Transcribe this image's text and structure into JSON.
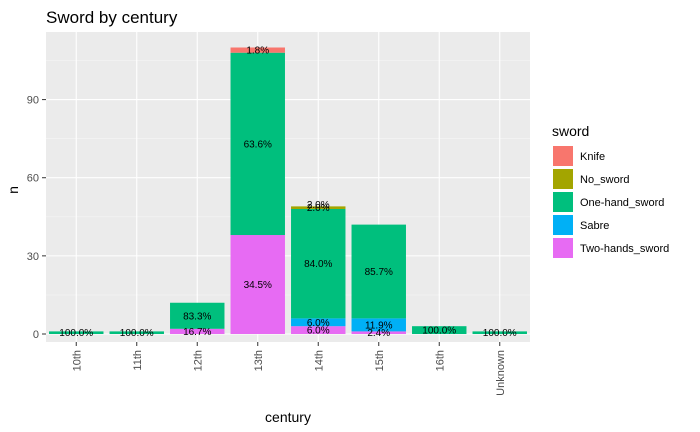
{
  "chart_data": {
    "type": "bar",
    "stacked": true,
    "title": "Sword by century",
    "xlabel": "century",
    "ylabel": "n",
    "categories": [
      "10th",
      "11th",
      "12th",
      "13th",
      "14th",
      "15th",
      "16th",
      "Unknown"
    ],
    "ylim": [
      0,
      113
    ],
    "yticks": [
      0,
      30,
      60,
      90
    ],
    "legend": {
      "title": "sword",
      "position": "right"
    },
    "series": [
      {
        "name": "Knife",
        "color": "#F8766D",
        "values": [
          0,
          0,
          0,
          2,
          0,
          0,
          0,
          0
        ],
        "labels": [
          "",
          "",
          "",
          "1.8%",
          "",
          "",
          "",
          ""
        ]
      },
      {
        "name": "No_sword",
        "color": "#A3A500",
        "values": [
          0,
          0,
          0,
          0,
          1,
          0,
          0,
          0
        ],
        "labels": [
          "",
          "",
          "",
          "",
          "2.0%",
          "",
          "",
          ""
        ]
      },
      {
        "name": "One-hand_sword",
        "color": "#00BF7D",
        "values": [
          1,
          1,
          10,
          70,
          42,
          36,
          3,
          1
        ],
        "labels": [
          "100.0%",
          "100.0%",
          "83.3%",
          "63.6%",
          "84.0%",
          "85.7%",
          "100.0%",
          "100.0%"
        ]
      },
      {
        "name": "Sabre",
        "color": "#00B0F6",
        "values": [
          0,
          0,
          0,
          0,
          3,
          5,
          0,
          0
        ],
        "labels": [
          "",
          "",
          "",
          "",
          "6.0%",
          "11.9%",
          "",
          ""
        ]
      },
      {
        "name": "Two-hands_sword",
        "color": "#E76BF3",
        "values": [
          0,
          0,
          2,
          38,
          3,
          1,
          0,
          0
        ],
        "labels": [
          "",
          "",
          "16.7%",
          "34.5%",
          "6.0%",
          "2.4%",
          "",
          ""
        ]
      }
    ],
    "extra_labels": [
      {
        "category": "14th",
        "text": "2.0%"
      }
    ]
  }
}
